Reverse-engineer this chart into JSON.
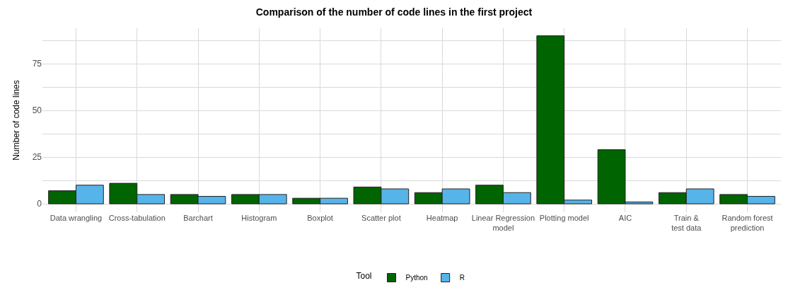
{
  "chart_data": {
    "type": "bar",
    "title": "Comparison of the number of code lines in the first project",
    "ylabel": "Number of code lines",
    "legend_title": "Tool",
    "categories": [
      "Data wrangling",
      "Cross-tabulation",
      "Barchart",
      "Histogram",
      "Boxplot",
      "Scatter plot",
      "Heatmap",
      "Linear Regression\nmodel",
      "Plotting model",
      "AIC",
      "Train &\ntest data",
      "Random forest\nprediction"
    ],
    "series": [
      {
        "name": "Python",
        "color": "#006400",
        "values": [
          7,
          11,
          5,
          5,
          3,
          9,
          6,
          10,
          90,
          29,
          6,
          5
        ]
      },
      {
        "name": "R",
        "color": "#56b4e9",
        "values": [
          10,
          5,
          4,
          5,
          3,
          8,
          8,
          6,
          2,
          1,
          8,
          4
        ]
      }
    ],
    "ylim": [
      -4.5,
      94
    ],
    "yticks": [
      0,
      {
        "value": 12.5,
        "label": null
      },
      25,
      {
        "value": 37.5,
        "label": null
      },
      50,
      {
        "value": 62.5,
        "label": null
      },
      75,
      {
        "value": 87.5,
        "label": null
      }
    ],
    "grid": true,
    "legend": "bottom"
  }
}
